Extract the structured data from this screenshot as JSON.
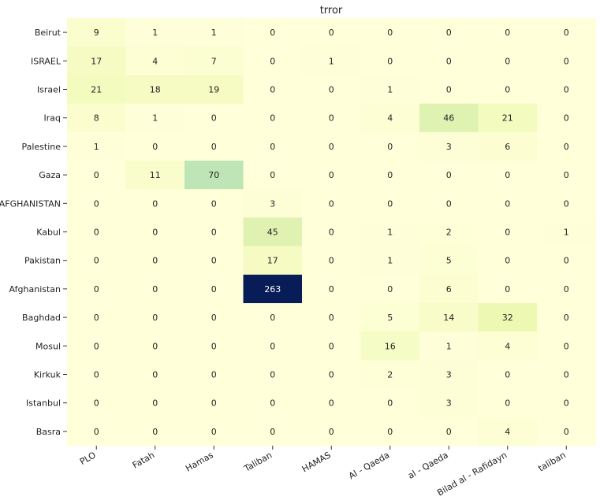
{
  "chart_data": {
    "type": "heatmap",
    "title": "trror",
    "xlabel": "",
    "ylabel": "",
    "colormap": "YlGnBu",
    "vmin": 0,
    "vmax": 263,
    "colorbar": false,
    "x_categories": [
      "PLO",
      "Fatah",
      "Hamas",
      "Taliban",
      "HAMAS",
      "Al - Qaeda",
      "al - Qaeda",
      "Bilad al - Rafidayn",
      "taliban"
    ],
    "y_categories": [
      "Beirut",
      "ISRAEL",
      "Israel",
      "Iraq",
      "Palestine",
      "Gaza",
      "AFGHANISTAN",
      "Kabul",
      "Pakistan",
      "Afghanistan",
      "Baghdad",
      "Mosul",
      "Kirkuk",
      "Istanbul",
      "Basra"
    ],
    "values": [
      [
        9,
        1,
        1,
        0,
        0,
        0,
        0,
        0,
        0
      ],
      [
        17,
        4,
        7,
        0,
        1,
        0,
        0,
        0,
        0
      ],
      [
        21,
        18,
        19,
        0,
        0,
        1,
        0,
        0,
        0
      ],
      [
        8,
        1,
        0,
        0,
        0,
        4,
        46,
        21,
        0
      ],
      [
        1,
        0,
        0,
        0,
        0,
        0,
        3,
        6,
        0
      ],
      [
        0,
        11,
        70,
        0,
        0,
        0,
        0,
        0,
        0
      ],
      [
        0,
        0,
        0,
        3,
        0,
        0,
        0,
        0,
        0
      ],
      [
        0,
        0,
        0,
        45,
        0,
        1,
        2,
        0,
        1
      ],
      [
        0,
        0,
        0,
        17,
        0,
        1,
        5,
        0,
        0
      ],
      [
        0,
        0,
        0,
        263,
        0,
        0,
        6,
        0,
        0
      ],
      [
        0,
        0,
        0,
        0,
        0,
        5,
        14,
        32,
        0
      ],
      [
        0,
        0,
        0,
        0,
        0,
        16,
        1,
        4,
        0
      ],
      [
        0,
        0,
        0,
        0,
        0,
        2,
        3,
        0,
        0
      ],
      [
        0,
        0,
        0,
        0,
        0,
        0,
        3,
        0,
        0
      ],
      [
        0,
        0,
        0,
        0,
        0,
        0,
        0,
        4,
        0
      ]
    ]
  }
}
